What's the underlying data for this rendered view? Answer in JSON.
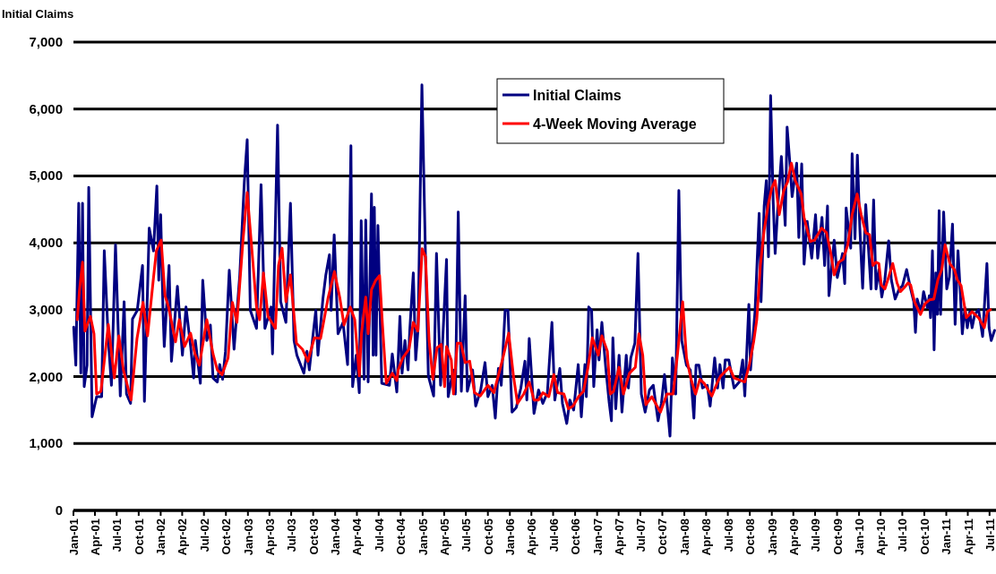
{
  "chart_data": {
    "type": "line",
    "ylabel": "Initial Claims",
    "legend": "top",
    "grid": "y",
    "xlim": [
      "2001-01-01",
      "2011-07-28"
    ],
    "xticks": [
      {
        "value": "2001-01",
        "label": "Jan-01"
      },
      {
        "value": "2001-04",
        "label": "Apr-01"
      },
      {
        "value": "2001-07",
        "label": "Jul-01"
      },
      {
        "value": "2001-10",
        "label": "Oct-01"
      },
      {
        "value": "2002-01",
        "label": "Jan-02"
      },
      {
        "value": "2002-04",
        "label": "Apr-02"
      },
      {
        "value": "2002-07",
        "label": "Jul-02"
      },
      {
        "value": "2002-10",
        "label": "Oct-02"
      },
      {
        "value": "2003-01",
        "label": "Jan-03"
      },
      {
        "value": "2003-04",
        "label": "Apr-03"
      },
      {
        "value": "2003-07",
        "label": "Jul-03"
      },
      {
        "value": "2003-10",
        "label": "Oct-03"
      },
      {
        "value": "2004-01",
        "label": "Jan-04"
      },
      {
        "value": "2004-04",
        "label": "Apr-04"
      },
      {
        "value": "2004-07",
        "label": "Jul-04"
      },
      {
        "value": "2004-10",
        "label": "Oct-04"
      },
      {
        "value": "2005-01",
        "label": "Jan-05"
      },
      {
        "value": "2005-04",
        "label": "Apr-05"
      },
      {
        "value": "2005-07",
        "label": "Jul-05"
      },
      {
        "value": "2005-10",
        "label": "Oct-05"
      },
      {
        "value": "2006-01",
        "label": "Jan-06"
      },
      {
        "value": "2006-04",
        "label": "Apr-06"
      },
      {
        "value": "2006-07",
        "label": "Jul-06"
      },
      {
        "value": "2006-10",
        "label": "Oct-06"
      },
      {
        "value": "2007-01",
        "label": "Jan-07"
      },
      {
        "value": "2007-04",
        "label": "Apr-07"
      },
      {
        "value": "2007-07",
        "label": "Jul-07"
      },
      {
        "value": "2007-10",
        "label": "Oct-07"
      },
      {
        "value": "2008-01",
        "label": "Jan-08"
      },
      {
        "value": "2008-04",
        "label": "Apr-08"
      },
      {
        "value": "2008-07",
        "label": "Jul-08"
      },
      {
        "value": "2008-10",
        "label": "Oct-08"
      },
      {
        "value": "2009-01",
        "label": "Jan-09"
      },
      {
        "value": "2009-04",
        "label": "Apr-09"
      },
      {
        "value": "2009-07",
        "label": "Jul-09"
      },
      {
        "value": "2009-10",
        "label": "Oct-09"
      },
      {
        "value": "2010-01",
        "label": "Jan-10"
      },
      {
        "value": "2010-04",
        "label": "Apr-10"
      },
      {
        "value": "2010-07",
        "label": "Jul-10"
      },
      {
        "value": "2010-10",
        "label": "Oct-10"
      },
      {
        "value": "2011-01",
        "label": "Jan-11"
      },
      {
        "value": "2011-04",
        "label": "Apr-11"
      },
      {
        "value": "2011-07",
        "label": "Jul-11"
      }
    ],
    "ylim": [
      0,
      7000
    ],
    "yticks": [
      0,
      {
        "value": 1000,
        "label": "1,000"
      },
      {
        "value": 2000,
        "label": "2,000"
      },
      {
        "value": 3000,
        "label": "3,000"
      },
      {
        "value": 4000,
        "label": "4,000"
      },
      {
        "value": 5000,
        "label": "5,000"
      },
      {
        "value": 6000,
        "label": "6,000"
      },
      {
        "value": 7000,
        "label": "7,000"
      }
    ],
    "series": [
      {
        "name": "Initial Claims",
        "color": "#000080",
        "x": [
          "2001-01-02",
          "2001-01-11",
          "2001-01-23",
          "2001-02-01",
          "2001-02-08",
          "2001-02-15",
          "2001-02-27",
          "2001-03-06",
          "2001-03-20",
          "2001-04-08",
          "2001-04-29",
          "2001-05-10",
          "2001-05-27",
          "2001-06-09",
          "2001-06-26",
          "2001-07-16",
          "2001-08-01",
          "2001-08-11",
          "2001-08-28",
          "2001-09-05",
          "2001-09-25",
          "2001-10-17",
          "2001-10-25",
          "2001-11-14",
          "2001-12-02",
          "2001-12-16",
          "2001-12-24",
          "2002-01-01",
          "2002-01-11",
          "2002-01-16",
          "2002-02-05",
          "2002-02-15",
          "2002-03-12",
          "2002-04-02",
          "2002-04-17",
          "2002-05-07",
          "2002-05-19",
          "2002-05-26",
          "2002-06-16",
          "2002-06-26",
          "2002-07-13",
          "2002-07-28",
          "2002-08-08",
          "2002-08-26",
          "2002-09-05",
          "2002-09-17",
          "2002-09-29",
          "2002-10-15",
          "2002-11-04",
          "2002-11-28",
          "2002-12-17",
          "2002-12-29",
          "2003-01-11",
          "2003-02-06",
          "2003-02-25",
          "2003-03-13",
          "2003-04-08",
          "2003-04-14",
          "2003-05-05",
          "2003-05-18",
          "2003-06-09",
          "2003-06-28",
          "2003-07-13",
          "2003-07-25",
          "2003-08-23",
          "2003-09-05",
          "2003-09-15",
          "2003-10-01",
          "2003-10-12",
          "2003-10-21",
          "2003-11-11",
          "2003-11-23",
          "2003-12-08",
          "2003-12-15",
          "2003-12-28",
          "2004-01-13",
          "2004-02-03",
          "2004-02-22",
          "2004-03-07",
          "2004-03-14",
          "2004-03-29",
          "2004-04-11",
          "2004-04-19",
          "2004-05-01",
          "2004-05-08",
          "2004-05-18",
          "2004-06-01",
          "2004-06-08",
          "2004-06-13",
          "2004-06-20",
          "2004-06-28",
          "2004-07-14",
          "2004-08-15",
          "2004-08-27",
          "2004-09-15",
          "2004-09-28",
          "2004-10-07",
          "2004-10-19",
          "2004-11-01",
          "2004-11-08",
          "2004-11-23",
          "2004-12-03",
          "2004-12-13",
          "2004-12-29",
          "2005-01-13",
          "2005-01-25",
          "2005-02-16",
          "2005-02-28",
          "2005-03-17",
          "2005-04-11",
          "2005-04-18",
          "2005-05-09",
          "2005-05-18",
          "2005-05-30",
          "2005-06-12",
          "2005-06-28",
          "2005-07-07",
          "2005-07-29",
          "2005-08-11",
          "2005-09-01",
          "2005-09-19",
          "2005-10-01",
          "2005-10-19",
          "2005-11-01",
          "2005-11-14",
          "2005-11-26",
          "2005-12-12",
          "2005-12-24",
          "2006-01-10",
          "2006-01-28",
          "2006-02-16",
          "2006-03-05",
          "2006-03-13",
          "2006-03-23",
          "2006-04-12",
          "2006-05-01",
          "2006-05-19",
          "2006-06-07",
          "2006-06-26",
          "2006-07-08",
          "2006-07-29",
          "2006-08-09",
          "2006-08-27",
          "2006-09-09",
          "2006-09-25",
          "2006-10-14",
          "2006-10-27",
          "2006-11-11",
          "2006-11-17",
          "2006-11-27",
          "2006-12-09",
          "2006-12-18",
          "2007-01-01",
          "2007-01-09",
          "2007-01-21",
          "2007-02-07",
          "2007-02-20",
          "2007-03-02",
          "2007-03-08",
          "2007-03-20",
          "2007-04-03",
          "2007-04-15",
          "2007-05-03",
          "2007-05-12",
          "2007-05-22",
          "2007-06-08",
          "2007-06-21",
          "2007-07-05",
          "2007-07-21",
          "2007-08-08",
          "2007-08-24",
          "2007-09-13",
          "2007-09-27",
          "2007-10-10",
          "2007-11-02",
          "2007-11-12",
          "2007-11-26",
          "2007-12-09",
          "2007-12-21",
          "2008-01-10",
          "2008-01-26",
          "2008-02-10",
          "2008-02-19",
          "2008-03-02",
          "2008-03-17",
          "2008-04-06",
          "2008-04-18",
          "2008-05-07",
          "2008-05-19",
          "2008-05-29",
          "2008-06-11",
          "2008-06-20",
          "2008-07-05",
          "2008-07-27",
          "2008-08-18",
          "2008-09-01",
          "2008-09-10",
          "2008-09-27",
          "2008-10-04",
          "2008-10-23",
          "2008-11-09",
          "2008-11-17",
          "2008-11-30",
          "2008-12-09",
          "2008-12-18",
          "2008-12-27",
          "2009-01-07",
          "2009-01-15",
          "2009-01-28",
          "2009-02-10",
          "2009-02-26",
          "2009-03-06",
          "2009-03-17",
          "2009-03-27",
          "2009-04-15",
          "2009-04-24",
          "2009-05-06",
          "2009-05-16",
          "2009-05-29",
          "2009-06-17",
          "2009-07-03",
          "2009-07-12",
          "2009-07-30",
          "2009-08-10",
          "2009-08-22",
          "2009-08-28",
          "2009-09-19",
          "2009-10-02",
          "2009-10-24",
          "2009-11-02",
          "2009-11-08",
          "2009-11-27",
          "2009-12-03",
          "2009-12-15",
          "2009-12-25",
          "2010-01-04",
          "2010-01-16",
          "2010-01-29",
          "2010-02-20",
          "2010-03-03",
          "2010-03-13",
          "2010-03-25",
          "2010-04-06",
          "2010-04-19",
          "2010-05-05",
          "2010-05-16",
          "2010-06-01",
          "2010-06-18",
          "2010-07-02",
          "2010-07-19",
          "2010-08-05",
          "2010-08-18",
          "2010-08-25",
          "2010-09-01",
          "2010-09-17",
          "2010-09-28",
          "2010-10-14",
          "2010-10-22",
          "2010-10-27",
          "2010-11-04",
          "2010-11-11",
          "2010-11-18",
          "2010-11-25",
          "2010-12-02",
          "2010-12-08",
          "2010-12-21",
          "2011-01-03",
          "2011-01-14",
          "2011-01-27",
          "2011-02-07",
          "2011-02-19",
          "2011-02-28",
          "2011-03-09",
          "2011-03-20",
          "2011-03-30",
          "2011-04-09",
          "2011-04-19",
          "2011-04-30",
          "2011-05-16",
          "2011-06-02",
          "2011-06-20",
          "2011-06-29",
          "2011-07-08",
          "2011-07-22"
        ],
        "values": [
          2740,
          2170,
          4590,
          2050,
          4590,
          1850,
          2170,
          4830,
          1400,
          1700,
          1700,
          3880,
          2540,
          1870,
          3970,
          1710,
          3120,
          1740,
          1600,
          2860,
          2990,
          3660,
          1630,
          4220,
          3880,
          4850,
          3440,
          4420,
          2950,
          2450,
          3660,
          2230,
          3350,
          2320,
          3040,
          2430,
          1980,
          2540,
          1900,
          3440,
          2540,
          2770,
          1980,
          1920,
          2180,
          1960,
          2370,
          3590,
          2410,
          3520,
          4910,
          5540,
          2990,
          2720,
          4870,
          2720,
          3040,
          2340,
          5760,
          3120,
          2810,
          4590,
          2540,
          2320,
          2050,
          2380,
          2100,
          2640,
          2990,
          2320,
          3170,
          3520,
          3820,
          2990,
          4120,
          2640,
          2810,
          2180,
          5450,
          1850,
          2320,
          1760,
          4330,
          1960,
          4340,
          1920,
          4730,
          2320,
          4530,
          2320,
          4260,
          1900,
          1870,
          2340,
          1770,
          2900,
          2050,
          2540,
          2100,
          2680,
          3550,
          2250,
          2720,
          6360,
          3790,
          2010,
          1710,
          3840,
          1870,
          3750,
          1700,
          2100,
          1740,
          4460,
          1780,
          3210,
          1780,
          2100,
          1560,
          1800,
          2210,
          1700,
          1870,
          1380,
          2120,
          1870,
          2990,
          2990,
          1470,
          1540,
          1830,
          2230,
          1650,
          2570,
          1450,
          1800,
          1600,
          1760,
          2810,
          1650,
          2120,
          1600,
          1300,
          1650,
          1500,
          2180,
          1400,
          2180,
          1700,
          3040,
          2990,
          1850,
          2700,
          2250,
          2810,
          2100,
          1630,
          1340,
          2580,
          1520,
          2320,
          1470,
          2320,
          1830,
          2280,
          2500,
          3840,
          1740,
          1470,
          1800,
          1870,
          1340,
          1600,
          2030,
          1110,
          2280,
          1740,
          4780,
          2540,
          2170,
          2100,
          1380,
          2170,
          2170,
          1830,
          1870,
          1560,
          2280,
          1830,
          2180,
          1830,
          2250,
          2250,
          1830,
          1920,
          2250,
          1710,
          3080,
          2100,
          2990,
          4440,
          3120,
          4550,
          4930,
          3790,
          6200,
          4590,
          3840,
          4640,
          5290,
          4260,
          5730,
          5220,
          4690,
          5190,
          4080,
          5180,
          3680,
          4320,
          3770,
          4420,
          3770,
          4380,
          3660,
          4550,
          3210,
          4040,
          3480,
          3840,
          3390,
          4520,
          3920,
          5330,
          4060,
          5310,
          4240,
          3320,
          4570,
          3310,
          4640,
          3310,
          3600,
          3190,
          3450,
          4030,
          3450,
          3160,
          3310,
          3360,
          3600,
          3310,
          3120,
          2660,
          3160,
          2970,
          3270,
          3030,
          3210,
          2880,
          3880,
          2400,
          3550,
          2930,
          4480,
          2930,
          4460,
          3310,
          3490,
          4280,
          2780,
          3880,
          3310,
          2640,
          3030,
          2730,
          2970,
          2730,
          2930,
          3000,
          2600,
          3690,
          2730,
          2540,
          2690
        ]
      },
      {
        "name": "4-Week Moving Average",
        "color": "#ff0000",
        "x": [
          "2001-01-17",
          "2001-01-26",
          "2001-02-08",
          "2001-02-18",
          "2001-03-13",
          "2001-03-28",
          "2001-04-08",
          "2001-04-26",
          "2001-05-27",
          "2001-06-21",
          "2001-07-10",
          "2001-07-29",
          "2001-08-30",
          "2001-09-24",
          "2001-10-19",
          "2001-11-07",
          "2001-12-02",
          "2001-12-14",
          "2002-01-03",
          "2002-01-19",
          "2002-02-03",
          "2002-03-04",
          "2002-03-20",
          "2002-04-11",
          "2002-05-06",
          "2002-05-24",
          "2002-06-12",
          "2002-07-13",
          "2002-08-08",
          "2002-08-26",
          "2002-09-15",
          "2002-10-10",
          "2002-10-28",
          "2002-11-16",
          "2002-12-11",
          "2002-12-29",
          "2003-01-18",
          "2003-02-06",
          "2003-02-19",
          "2003-03-07",
          "2003-03-26",
          "2003-04-26",
          "2003-05-09",
          "2003-05-24",
          "2003-06-09",
          "2003-06-28",
          "2003-07-23",
          "2003-08-17",
          "2003-09-09",
          "2003-10-06",
          "2003-11-01",
          "2003-12-02",
          "2003-12-29",
          "2004-01-21",
          "2004-02-07",
          "2004-03-04",
          "2004-03-23",
          "2004-04-11",
          "2004-04-20",
          "2004-05-08",
          "2004-05-18",
          "2004-06-01",
          "2004-06-19",
          "2004-07-05",
          "2004-07-17",
          "2004-08-02",
          "2004-08-27",
          "2004-09-15",
          "2004-09-21",
          "2004-10-10",
          "2004-11-05",
          "2004-11-23",
          "2004-12-12",
          "2004-12-30",
          "2005-01-13",
          "2005-01-28",
          "2005-02-13",
          "2005-03-02",
          "2005-03-20",
          "2005-04-03",
          "2005-04-11",
          "2005-05-01",
          "2005-05-10",
          "2005-05-26",
          "2005-06-10",
          "2005-06-28",
          "2005-07-17",
          "2005-08-06",
          "2005-08-30",
          "2005-10-01",
          "2005-10-26",
          "2005-12-03",
          "2005-12-27",
          "2006-01-16",
          "2006-02-02",
          "2006-02-28",
          "2006-03-23",
          "2006-04-12",
          "2006-05-01",
          "2006-05-19",
          "2006-06-13",
          "2006-07-04",
          "2006-07-20",
          "2006-08-15",
          "2006-09-03",
          "2006-09-22",
          "2006-10-17",
          "2006-11-05",
          "2006-11-24",
          "2006-12-12",
          "2007-01-06",
          "2007-01-21",
          "2007-02-13",
          "2007-02-25",
          "2007-03-11",
          "2007-04-03",
          "2007-04-21",
          "2007-05-16",
          "2007-06-10",
          "2007-06-25",
          "2007-07-11",
          "2007-07-24",
          "2007-08-18",
          "2007-09-23",
          "2007-10-20",
          "2007-11-15",
          "2007-12-03",
          "2007-12-25",
          "2008-01-10",
          "2008-01-29",
          "2008-02-17",
          "2008-03-06",
          "2008-03-24",
          "2008-04-25",
          "2008-05-19",
          "2008-06-01",
          "2008-07-08",
          "2008-07-27",
          "2008-09-10",
          "2008-09-29",
          "2008-10-17",
          "2008-10-30",
          "2008-11-14",
          "2008-11-30",
          "2008-12-18",
          "2009-01-01",
          "2009-01-15",
          "2009-02-01",
          "2009-02-20",
          "2009-03-08",
          "2009-03-24",
          "2009-04-09",
          "2009-05-04",
          "2009-05-16",
          "2009-06-01",
          "2009-06-11",
          "2009-06-29",
          "2009-07-28",
          "2009-08-18",
          "2009-09-05",
          "2009-09-19",
          "2009-10-08",
          "2009-10-26",
          "2009-11-15",
          "2009-12-03",
          "2009-12-24",
          "2010-01-10",
          "2010-01-29",
          "2010-02-14",
          "2010-02-28",
          "2010-03-13",
          "2010-03-25",
          "2010-04-04",
          "2010-04-19",
          "2010-05-05",
          "2010-05-22",
          "2010-06-09",
          "2010-06-23",
          "2010-07-09",
          "2010-07-25",
          "2010-08-05",
          "2010-08-21",
          "2010-09-15",
          "2010-10-04",
          "2010-10-24",
          "2010-11-10",
          "2010-11-27",
          "2010-12-13",
          "2010-12-27",
          "2011-01-16",
          "2011-02-04",
          "2011-02-16",
          "2011-03-04",
          "2011-03-26",
          "2011-04-19",
          "2011-05-16",
          "2011-06-09",
          "2011-06-22",
          "2011-07-05"
        ],
        "values": [
          2850,
          3280,
          3710,
          2680,
          2900,
          2640,
          1740,
          1780,
          2780,
          1980,
          2610,
          2100,
          1650,
          2570,
          3110,
          2610,
          3480,
          3880,
          4040,
          3210,
          3040,
          2520,
          2850,
          2450,
          2650,
          2340,
          2170,
          2850,
          2340,
          2100,
          2030,
          2280,
          3110,
          2810,
          4020,
          4750,
          3880,
          3040,
          2850,
          3550,
          2900,
          2720,
          3660,
          3920,
          3120,
          3520,
          2500,
          2410,
          2230,
          2580,
          2570,
          3170,
          3570,
          3170,
          2770,
          3040,
          2850,
          2010,
          2640,
          3190,
          2640,
          3300,
          3440,
          3510,
          2770,
          1900,
          2050,
          1940,
          2100,
          2280,
          2410,
          2810,
          2680,
          3910,
          3790,
          2540,
          1960,
          2430,
          2480,
          1850,
          2450,
          2250,
          1740,
          2500,
          2500,
          2210,
          2230,
          1760,
          1710,
          1870,
          1760,
          2280,
          2650,
          2010,
          1600,
          1740,
          1920,
          1650,
          1650,
          1760,
          1700,
          2030,
          1760,
          1740,
          1520,
          1560,
          1710,
          1780,
          2140,
          2580,
          2320,
          2610,
          2380,
          1740,
          1780,
          2140,
          1740,
          2050,
          2140,
          2640,
          2320,
          1580,
          1700,
          1470,
          1740,
          1740,
          2320,
          3120,
          2280,
          1960,
          1740,
          1960,
          1900,
          1710,
          1920,
          2010,
          2140,
          1980,
          1920,
          2180,
          2520,
          2850,
          3660,
          4190,
          4590,
          4820,
          4930,
          4420,
          4780,
          4910,
          5190,
          4930,
          4730,
          4380,
          4150,
          4020,
          4040,
          4220,
          4150,
          3840,
          3520,
          3710,
          3750,
          3970,
          4420,
          4730,
          4420,
          4150,
          4120,
          3660,
          3710,
          3690,
          3370,
          3310,
          3490,
          3690,
          3400,
          3270,
          3330,
          3400,
          3370,
          3120,
          2930,
          3090,
          3150,
          3160,
          3450,
          3600,
          3970,
          3690,
          3600,
          3450,
          3360,
          2880,
          2970,
          2880,
          2730,
          2970,
          3000
        ]
      }
    ]
  }
}
